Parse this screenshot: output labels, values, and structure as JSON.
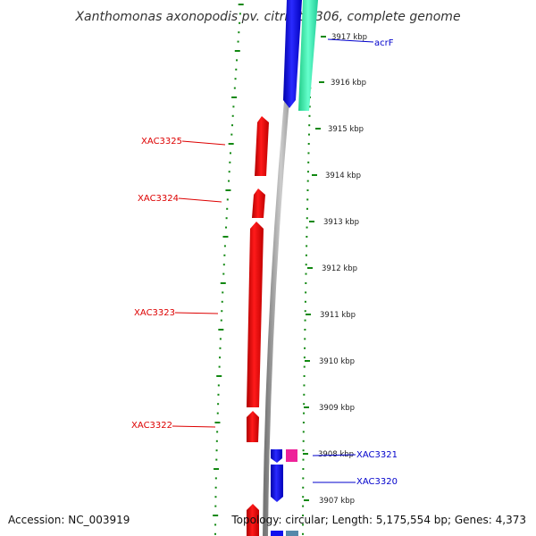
{
  "title": "Xanthomonas axonopodis pv. citri str. 306, complete genome",
  "footer": {
    "accession": "Accession: NC_003919",
    "stats": "Topology: circular; Length: 5,175,554 bp; Genes: 4,373"
  },
  "ticks": [
    {
      "label": "3917 kbp",
      "kbp": 3917
    },
    {
      "label": "3916 kbp",
      "kbp": 3916
    },
    {
      "label": "3915 kbp",
      "kbp": 3915
    },
    {
      "label": "3914 kbp",
      "kbp": 3914
    },
    {
      "label": "3913 kbp",
      "kbp": 3913
    },
    {
      "label": "3912 kbp",
      "kbp": 3912
    },
    {
      "label": "3911 kbp",
      "kbp": 3911
    },
    {
      "label": "3910 kbp",
      "kbp": 3910
    },
    {
      "label": "3909 kbp",
      "kbp": 3909
    },
    {
      "label": "3908 kbp",
      "kbp": 3908
    },
    {
      "label": "3907 kbp",
      "kbp": 3907
    }
  ],
  "gene_labels": [
    {
      "label": "acrF",
      "color": "#0000cc"
    },
    {
      "label": "XAC3325",
      "color": "#dd0000"
    },
    {
      "label": "XAC3324",
      "color": "#dd0000"
    },
    {
      "label": "XAC3323",
      "color": "#dd0000"
    },
    {
      "label": "XAC3322",
      "color": "#dd0000"
    },
    {
      "label": "XAC3321",
      "color": "#0000cc"
    },
    {
      "label": "XAC3320",
      "color": "#0000cc"
    }
  ],
  "colors": {
    "minus_strand_gene": "#ee0000",
    "plus_strand_gene": "#1010ee",
    "acrF_partner": "#33ddaa",
    "small_feature": "#ee2299",
    "small_feature_2": "#5588aa",
    "backbone": "#999999",
    "dotted_track": "#118811"
  }
}
